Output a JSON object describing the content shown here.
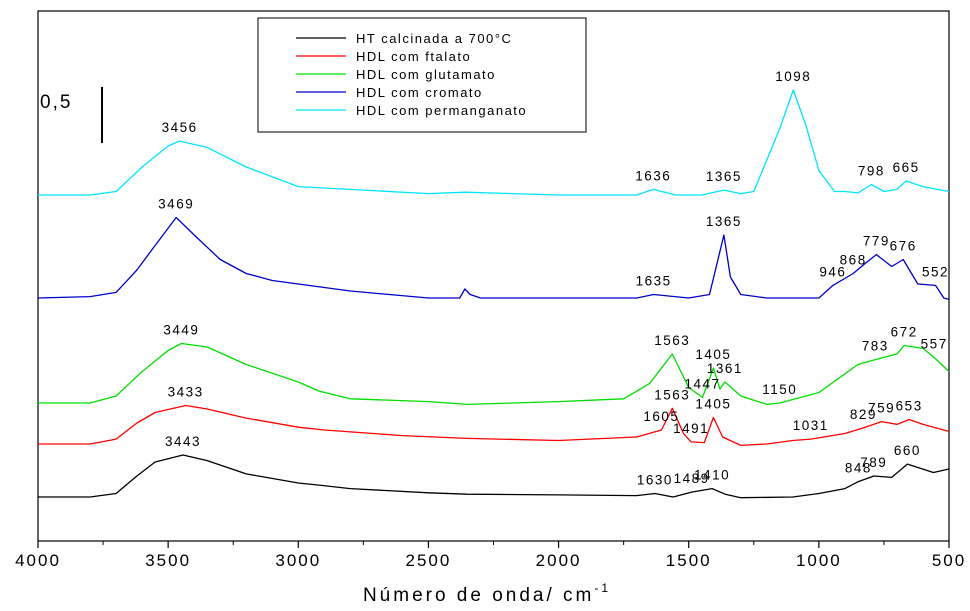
{
  "chart_data": {
    "type": "line",
    "xlabel": "Número de onda/ cm",
    "xlabel_superscript": "-1",
    "xlim": [
      4000,
      500
    ],
    "x_reversed": true,
    "y_ticks_visible": false,
    "x_ticks": [
      "4000",
      "3500",
      "3000",
      "2500",
      "2000",
      "1500",
      "1000",
      "500"
    ],
    "scale_bar_label": "0,5",
    "legend_position": "top-center",
    "series": [
      {
        "name": "HT calcinada a 700°C",
        "color": "#000000",
        "points": [
          [
            4000,
            0.0
          ],
          [
            3800,
            0.0
          ],
          [
            3700,
            0.05
          ],
          [
            3620,
            0.3
          ],
          [
            3550,
            0.5
          ],
          [
            3443,
            0.6
          ],
          [
            3350,
            0.52
          ],
          [
            3200,
            0.33
          ],
          [
            3000,
            0.2
          ],
          [
            2920,
            0.17
          ],
          [
            2800,
            0.12
          ],
          [
            2500,
            0.06
          ],
          [
            2350,
            0.04
          ],
          [
            2000,
            0.03
          ],
          [
            1700,
            0.02
          ],
          [
            1630,
            0.05
          ],
          [
            1560,
            0.0
          ],
          [
            1489,
            0.07
          ],
          [
            1410,
            0.12
          ],
          [
            1360,
            0.04
          ],
          [
            1300,
            -0.01
          ],
          [
            1100,
            0.0
          ],
          [
            1000,
            0.05
          ],
          [
            900,
            0.12
          ],
          [
            848,
            0.22
          ],
          [
            789,
            0.3
          ],
          [
            720,
            0.28
          ],
          [
            660,
            0.47
          ],
          [
            560,
            0.35
          ],
          [
            500,
            0.4
          ]
        ]
      },
      {
        "name": "HDL com ftalato",
        "color": "#ff0000",
        "points": [
          [
            4000,
            0.0
          ],
          [
            3800,
            0.0
          ],
          [
            3700,
            0.07
          ],
          [
            3620,
            0.3
          ],
          [
            3550,
            0.45
          ],
          [
            3433,
            0.55
          ],
          [
            3350,
            0.5
          ],
          [
            3200,
            0.37
          ],
          [
            3000,
            0.24
          ],
          [
            2900,
            0.2
          ],
          [
            2600,
            0.12
          ],
          [
            2350,
            0.08
          ],
          [
            2000,
            0.05
          ],
          [
            1700,
            0.1
          ],
          [
            1605,
            0.2
          ],
          [
            1563,
            0.51
          ],
          [
            1520,
            0.15
          ],
          [
            1491,
            0.03
          ],
          [
            1440,
            0.02
          ],
          [
            1405,
            0.38
          ],
          [
            1370,
            0.1
          ],
          [
            1300,
            -0.02
          ],
          [
            1200,
            0.0
          ],
          [
            1100,
            0.05
          ],
          [
            1031,
            0.07
          ],
          [
            900,
            0.15
          ],
          [
            829,
            0.23
          ],
          [
            759,
            0.32
          ],
          [
            700,
            0.28
          ],
          [
            653,
            0.35
          ],
          [
            600,
            0.28
          ],
          [
            500,
            0.18
          ]
        ]
      },
      {
        "name": "HDL com glutamato",
        "color": "#00dd00",
        "points": [
          [
            4000,
            0.0
          ],
          [
            3800,
            0.0
          ],
          [
            3700,
            0.1
          ],
          [
            3600,
            0.45
          ],
          [
            3500,
            0.75
          ],
          [
            3449,
            0.85
          ],
          [
            3350,
            0.8
          ],
          [
            3200,
            0.55
          ],
          [
            3000,
            0.3
          ],
          [
            2920,
            0.17
          ],
          [
            2800,
            0.06
          ],
          [
            2500,
            0.02
          ],
          [
            2350,
            -0.02
          ],
          [
            2000,
            0.02
          ],
          [
            1750,
            0.06
          ],
          [
            1650,
            0.28
          ],
          [
            1563,
            0.7
          ],
          [
            1500,
            0.22
          ],
          [
            1447,
            0.08
          ],
          [
            1405,
            0.5
          ],
          [
            1380,
            0.2
          ],
          [
            1361,
            0.3
          ],
          [
            1300,
            0.1
          ],
          [
            1200,
            -0.02
          ],
          [
            1150,
            0.0
          ],
          [
            1000,
            0.15
          ],
          [
            850,
            0.55
          ],
          [
            783,
            0.62
          ],
          [
            700,
            0.7
          ],
          [
            672,
            0.82
          ],
          [
            600,
            0.78
          ],
          [
            557,
            0.65
          ],
          [
            500,
            0.45
          ]
        ]
      },
      {
        "name": "HDL com cromato",
        "color": "#0000c8",
        "points": [
          [
            4000,
            0.0
          ],
          [
            3800,
            0.02
          ],
          [
            3700,
            0.08
          ],
          [
            3620,
            0.4
          ],
          [
            3550,
            0.75
          ],
          [
            3469,
            1.15
          ],
          [
            3400,
            0.9
          ],
          [
            3300,
            0.55
          ],
          [
            3200,
            0.35
          ],
          [
            3100,
            0.25
          ],
          [
            3000,
            0.2
          ],
          [
            2800,
            0.1
          ],
          [
            2500,
            0.0
          ],
          [
            2380,
            0.0
          ],
          [
            2360,
            0.13
          ],
          [
            2340,
            0.05
          ],
          [
            2300,
            0.0
          ],
          [
            2000,
            0.0
          ],
          [
            1700,
            0.0
          ],
          [
            1635,
            0.05
          ],
          [
            1500,
            0.0
          ],
          [
            1420,
            0.05
          ],
          [
            1365,
            0.9
          ],
          [
            1340,
            0.3
          ],
          [
            1300,
            0.05
          ],
          [
            1200,
            0.0
          ],
          [
            1000,
            0.0
          ],
          [
            946,
            0.18
          ],
          [
            868,
            0.35
          ],
          [
            820,
            0.5
          ],
          [
            779,
            0.62
          ],
          [
            720,
            0.45
          ],
          [
            676,
            0.55
          ],
          [
            620,
            0.2
          ],
          [
            552,
            0.18
          ],
          [
            520,
            0.0
          ],
          [
            500,
            -0.02
          ]
        ]
      },
      {
        "name": "HDL com permanganato",
        "color": "#00e5ff",
        "points": [
          [
            4000,
            0.0
          ],
          [
            3800,
            0.0
          ],
          [
            3700,
            0.05
          ],
          [
            3600,
            0.4
          ],
          [
            3500,
            0.7
          ],
          [
            3456,
            0.77
          ],
          [
            3350,
            0.68
          ],
          [
            3200,
            0.4
          ],
          [
            3000,
            0.12
          ],
          [
            2500,
            0.02
          ],
          [
            2360,
            0.04
          ],
          [
            2000,
            0.0
          ],
          [
            1700,
            0.0
          ],
          [
            1636,
            0.08
          ],
          [
            1550,
            0.0
          ],
          [
            1450,
            0.0
          ],
          [
            1365,
            0.07
          ],
          [
            1300,
            0.02
          ],
          [
            1250,
            0.05
          ],
          [
            1200,
            0.5
          ],
          [
            1150,
            0.95
          ],
          [
            1098,
            1.5
          ],
          [
            1050,
            1.0
          ],
          [
            1000,
            0.35
          ],
          [
            940,
            0.05
          ],
          [
            900,
            0.05
          ],
          [
            850,
            0.03
          ],
          [
            798,
            0.15
          ],
          [
            750,
            0.05
          ],
          [
            700,
            0.08
          ],
          [
            665,
            0.2
          ],
          [
            600,
            0.12
          ],
          [
            500,
            0.05
          ]
        ]
      }
    ],
    "peak_labels": [
      {
        "series": 0,
        "text": "3443",
        "x": 3443
      },
      {
        "series": 0,
        "text": "1630",
        "x": 1630
      },
      {
        "series": 0,
        "text": "1489",
        "x": 1489
      },
      {
        "series": 0,
        "text": "1410",
        "x": 1410
      },
      {
        "series": 0,
        "text": "848",
        "x": 848
      },
      {
        "series": 0,
        "text": "789",
        "x": 789
      },
      {
        "series": 0,
        "text": "660",
        "x": 660
      },
      {
        "series": 1,
        "text": "3433",
        "x": 3433
      },
      {
        "series": 1,
        "text": "1605",
        "x": 1605
      },
      {
        "series": 1,
        "text": "1563",
        "x": 1563
      },
      {
        "series": 1,
        "text": "1491",
        "x": 1491
      },
      {
        "series": 1,
        "text": "1405",
        "x": 1405
      },
      {
        "series": 1,
        "text": "1031",
        "x": 1031
      },
      {
        "series": 1,
        "text": "829",
        "x": 829
      },
      {
        "series": 1,
        "text": "759",
        "x": 759
      },
      {
        "series": 1,
        "text": "653",
        "x": 653
      },
      {
        "series": 2,
        "text": "3449",
        "x": 3449
      },
      {
        "series": 2,
        "text": "1563",
        "x": 1563
      },
      {
        "series": 2,
        "text": "1447",
        "x": 1447
      },
      {
        "series": 2,
        "text": "1405",
        "x": 1405
      },
      {
        "series": 2,
        "text": "1361",
        "x": 1361
      },
      {
        "series": 2,
        "text": "1150",
        "x": 1150
      },
      {
        "series": 2,
        "text": "783",
        "x": 783
      },
      {
        "series": 2,
        "text": "672",
        "x": 672
      },
      {
        "series": 2,
        "text": "557",
        "x": 557
      },
      {
        "series": 3,
        "text": "3469",
        "x": 3469
      },
      {
        "series": 3,
        "text": "1635",
        "x": 1635
      },
      {
        "series": 3,
        "text": "1365",
        "x": 1365
      },
      {
        "series": 3,
        "text": "946",
        "x": 946
      },
      {
        "series": 3,
        "text": "868",
        "x": 868
      },
      {
        "series": 3,
        "text": "779",
        "x": 779
      },
      {
        "series": 3,
        "text": "676",
        "x": 676
      },
      {
        "series": 3,
        "text": "552",
        "x": 552
      },
      {
        "series": 4,
        "text": "3456",
        "x": 3456
      },
      {
        "series": 4,
        "text": "1636",
        "x": 1636
      },
      {
        "series": 4,
        "text": "1365",
        "x": 1365
      },
      {
        "series": 4,
        "text": "1098",
        "x": 1098
      },
      {
        "series": 4,
        "text": "798",
        "x": 798
      },
      {
        "series": 4,
        "text": "665",
        "x": 665
      }
    ]
  }
}
